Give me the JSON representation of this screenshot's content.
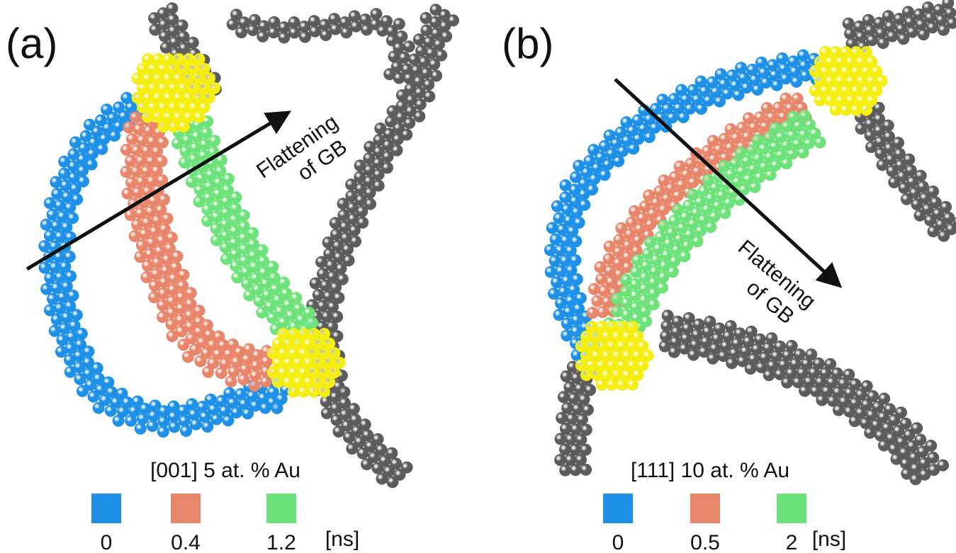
{
  "panels": [
    {
      "label": "(a)",
      "annotation": [
        "Flattening",
        "of GB"
      ],
      "caption": "[001] 5 at. % Au",
      "legend": [
        {
          "value": 0,
          "color": "#1e90e6"
        },
        {
          "value": 0.4,
          "color": "#e8866c"
        },
        {
          "value": 1.2,
          "color": "#6ee27a"
        }
      ],
      "unit": "[ns]"
    },
    {
      "label": "(b)",
      "annotation": [
        "Flattening",
        "of GB"
      ],
      "caption": "[111] 10 at. % Au",
      "legend": [
        {
          "value": 0,
          "color": "#1e90e6"
        },
        {
          "value": 0.5,
          "color": "#e8866c"
        },
        {
          "value": 2,
          "color": "#6ee27a"
        }
      ],
      "unit": "[ns]"
    }
  ]
}
